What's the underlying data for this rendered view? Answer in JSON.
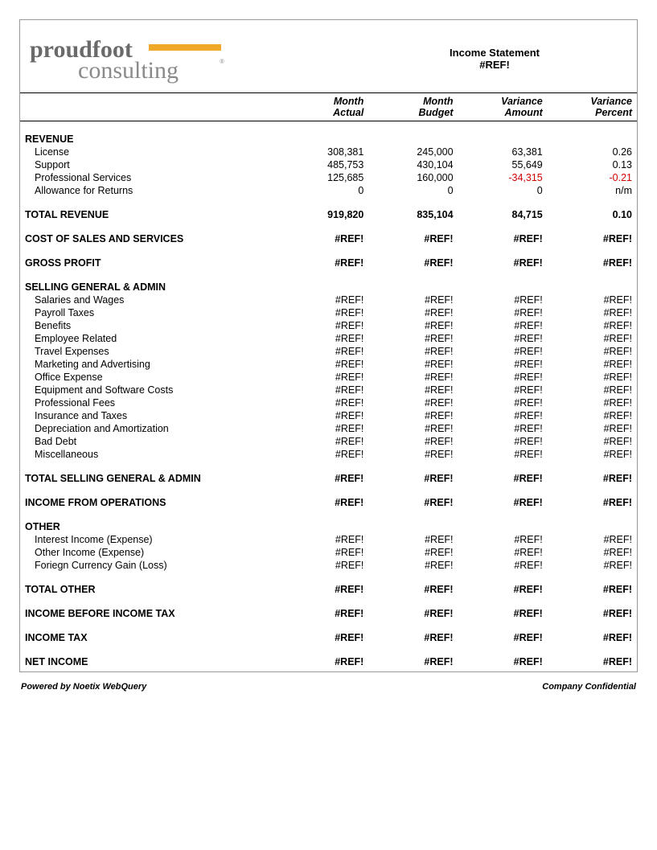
{
  "brand": {
    "line1": "proudfoot",
    "line2": "consulting",
    "text_color": "#6a6a6a",
    "bar_color": "#f0a828"
  },
  "title": {
    "main": "Income Statement",
    "sub": "#REF!"
  },
  "columns": [
    {
      "l1": "",
      "l2": ""
    },
    {
      "l1": "Month",
      "l2": "Actual"
    },
    {
      "l1": "Month",
      "l2": "Budget"
    },
    {
      "l1": "Variance",
      "l2": "Amount"
    },
    {
      "l1": "Variance",
      "l2": "Percent"
    }
  ],
  "rows": [
    {
      "type": "spacer"
    },
    {
      "type": "section",
      "label": "REVENUE"
    },
    {
      "type": "line",
      "label": "License",
      "v": [
        "308,381",
        "245,000",
        "63,381",
        "0.26"
      ],
      "neg": [
        false,
        false,
        false,
        false
      ]
    },
    {
      "type": "line",
      "label": "Support",
      "v": [
        "485,753",
        "430,104",
        "55,649",
        "0.13"
      ],
      "neg": [
        false,
        false,
        false,
        false
      ]
    },
    {
      "type": "line",
      "label": "Professional Services",
      "v": [
        "125,685",
        "160,000",
        "-34,315",
        "-0.21"
      ],
      "neg": [
        false,
        false,
        true,
        true
      ]
    },
    {
      "type": "line",
      "label": "Allowance for Returns",
      "v": [
        "0",
        "0",
        "0",
        "n/m"
      ],
      "neg": [
        false,
        false,
        false,
        false
      ]
    },
    {
      "type": "spacer"
    },
    {
      "type": "total",
      "label": "TOTAL REVENUE",
      "v": [
        "919,820",
        "835,104",
        "84,715",
        "0.10"
      ],
      "neg": [
        false,
        false,
        false,
        false
      ]
    },
    {
      "type": "spacer"
    },
    {
      "type": "total",
      "label": "COST OF SALES AND SERVICES",
      "v": [
        "#REF!",
        "#REF!",
        "#REF!",
        "#REF!"
      ],
      "neg": [
        false,
        false,
        false,
        false
      ]
    },
    {
      "type": "spacer"
    },
    {
      "type": "total",
      "label": "GROSS PROFIT",
      "v": [
        "#REF!",
        "#REF!",
        "#REF!",
        "#REF!"
      ],
      "neg": [
        false,
        false,
        false,
        false
      ]
    },
    {
      "type": "spacer"
    },
    {
      "type": "section",
      "label": "SELLING GENERAL & ADMIN"
    },
    {
      "type": "line",
      "label": "Salaries and Wages",
      "v": [
        "#REF!",
        "#REF!",
        "#REF!",
        "#REF!"
      ],
      "neg": [
        false,
        false,
        false,
        false
      ]
    },
    {
      "type": "line",
      "label": "Payroll Taxes",
      "v": [
        "#REF!",
        "#REF!",
        "#REF!",
        "#REF!"
      ],
      "neg": [
        false,
        false,
        false,
        false
      ]
    },
    {
      "type": "line",
      "label": "Benefits",
      "v": [
        "#REF!",
        "#REF!",
        "#REF!",
        "#REF!"
      ],
      "neg": [
        false,
        false,
        false,
        false
      ]
    },
    {
      "type": "line",
      "label": "Employee Related",
      "v": [
        "#REF!",
        "#REF!",
        "#REF!",
        "#REF!"
      ],
      "neg": [
        false,
        false,
        false,
        false
      ]
    },
    {
      "type": "line",
      "label": "Travel Expenses",
      "v": [
        "#REF!",
        "#REF!",
        "#REF!",
        "#REF!"
      ],
      "neg": [
        false,
        false,
        false,
        false
      ]
    },
    {
      "type": "line",
      "label": "Marketing and Advertising",
      "v": [
        "#REF!",
        "#REF!",
        "#REF!",
        "#REF!"
      ],
      "neg": [
        false,
        false,
        false,
        false
      ]
    },
    {
      "type": "line",
      "label": "Office Expense",
      "v": [
        "#REF!",
        "#REF!",
        "#REF!",
        "#REF!"
      ],
      "neg": [
        false,
        false,
        false,
        false
      ]
    },
    {
      "type": "line",
      "label": "Equipment and Software Costs",
      "v": [
        "#REF!",
        "#REF!",
        "#REF!",
        "#REF!"
      ],
      "neg": [
        false,
        false,
        false,
        false
      ]
    },
    {
      "type": "line",
      "label": "Professional Fees",
      "v": [
        "#REF!",
        "#REF!",
        "#REF!",
        "#REF!"
      ],
      "neg": [
        false,
        false,
        false,
        false
      ]
    },
    {
      "type": "line",
      "label": "Insurance and Taxes",
      "v": [
        "#REF!",
        "#REF!",
        "#REF!",
        "#REF!"
      ],
      "neg": [
        false,
        false,
        false,
        false
      ]
    },
    {
      "type": "line",
      "label": "Depreciation and Amortization",
      "v": [
        "#REF!",
        "#REF!",
        "#REF!",
        "#REF!"
      ],
      "neg": [
        false,
        false,
        false,
        false
      ]
    },
    {
      "type": "line",
      "label": "Bad Debt",
      "v": [
        "#REF!",
        "#REF!",
        "#REF!",
        "#REF!"
      ],
      "neg": [
        false,
        false,
        false,
        false
      ]
    },
    {
      "type": "line",
      "label": "Miscellaneous",
      "v": [
        "#REF!",
        "#REF!",
        "#REF!",
        "#REF!"
      ],
      "neg": [
        false,
        false,
        false,
        false
      ]
    },
    {
      "type": "spacer"
    },
    {
      "type": "total",
      "label": "TOTAL SELLING GENERAL & ADMIN",
      "v": [
        "#REF!",
        "#REF!",
        "#REF!",
        "#REF!"
      ],
      "neg": [
        false,
        false,
        false,
        false
      ]
    },
    {
      "type": "spacer"
    },
    {
      "type": "total",
      "label": "INCOME FROM OPERATIONS",
      "v": [
        "#REF!",
        "#REF!",
        "#REF!",
        "#REF!"
      ],
      "neg": [
        false,
        false,
        false,
        false
      ]
    },
    {
      "type": "spacer"
    },
    {
      "type": "section",
      "label": "OTHER"
    },
    {
      "type": "line",
      "label": "Interest Income (Expense)",
      "v": [
        "#REF!",
        "#REF!",
        "#REF!",
        "#REF!"
      ],
      "neg": [
        false,
        false,
        false,
        false
      ]
    },
    {
      "type": "line",
      "label": "Other Income (Expense)",
      "v": [
        "#REF!",
        "#REF!",
        "#REF!",
        "#REF!"
      ],
      "neg": [
        false,
        false,
        false,
        false
      ]
    },
    {
      "type": "line",
      "label": "Foriegn Currency Gain (Loss)",
      "v": [
        "#REF!",
        "#REF!",
        "#REF!",
        "#REF!"
      ],
      "neg": [
        false,
        false,
        false,
        false
      ]
    },
    {
      "type": "spacer"
    },
    {
      "type": "total",
      "label": "TOTAL OTHER",
      "v": [
        "#REF!",
        "#REF!",
        "#REF!",
        "#REF!"
      ],
      "neg": [
        false,
        false,
        false,
        false
      ]
    },
    {
      "type": "spacer"
    },
    {
      "type": "total",
      "label": "INCOME BEFORE INCOME TAX",
      "v": [
        "#REF!",
        "#REF!",
        "#REF!",
        "#REF!"
      ],
      "neg": [
        false,
        false,
        false,
        false
      ]
    },
    {
      "type": "spacer"
    },
    {
      "type": "total",
      "label": "INCOME TAX",
      "v": [
        "#REF!",
        "#REF!",
        "#REF!",
        "#REF!"
      ],
      "neg": [
        false,
        false,
        false,
        false
      ]
    },
    {
      "type": "spacer"
    },
    {
      "type": "total",
      "label": "NET INCOME",
      "v": [
        "#REF!",
        "#REF!",
        "#REF!",
        "#REF!"
      ],
      "neg": [
        false,
        false,
        false,
        false
      ]
    },
    {
      "type": "spacer-small"
    }
  ],
  "footer": {
    "left": "Powered by Noetix WebQuery",
    "right": "Company Confidential"
  }
}
